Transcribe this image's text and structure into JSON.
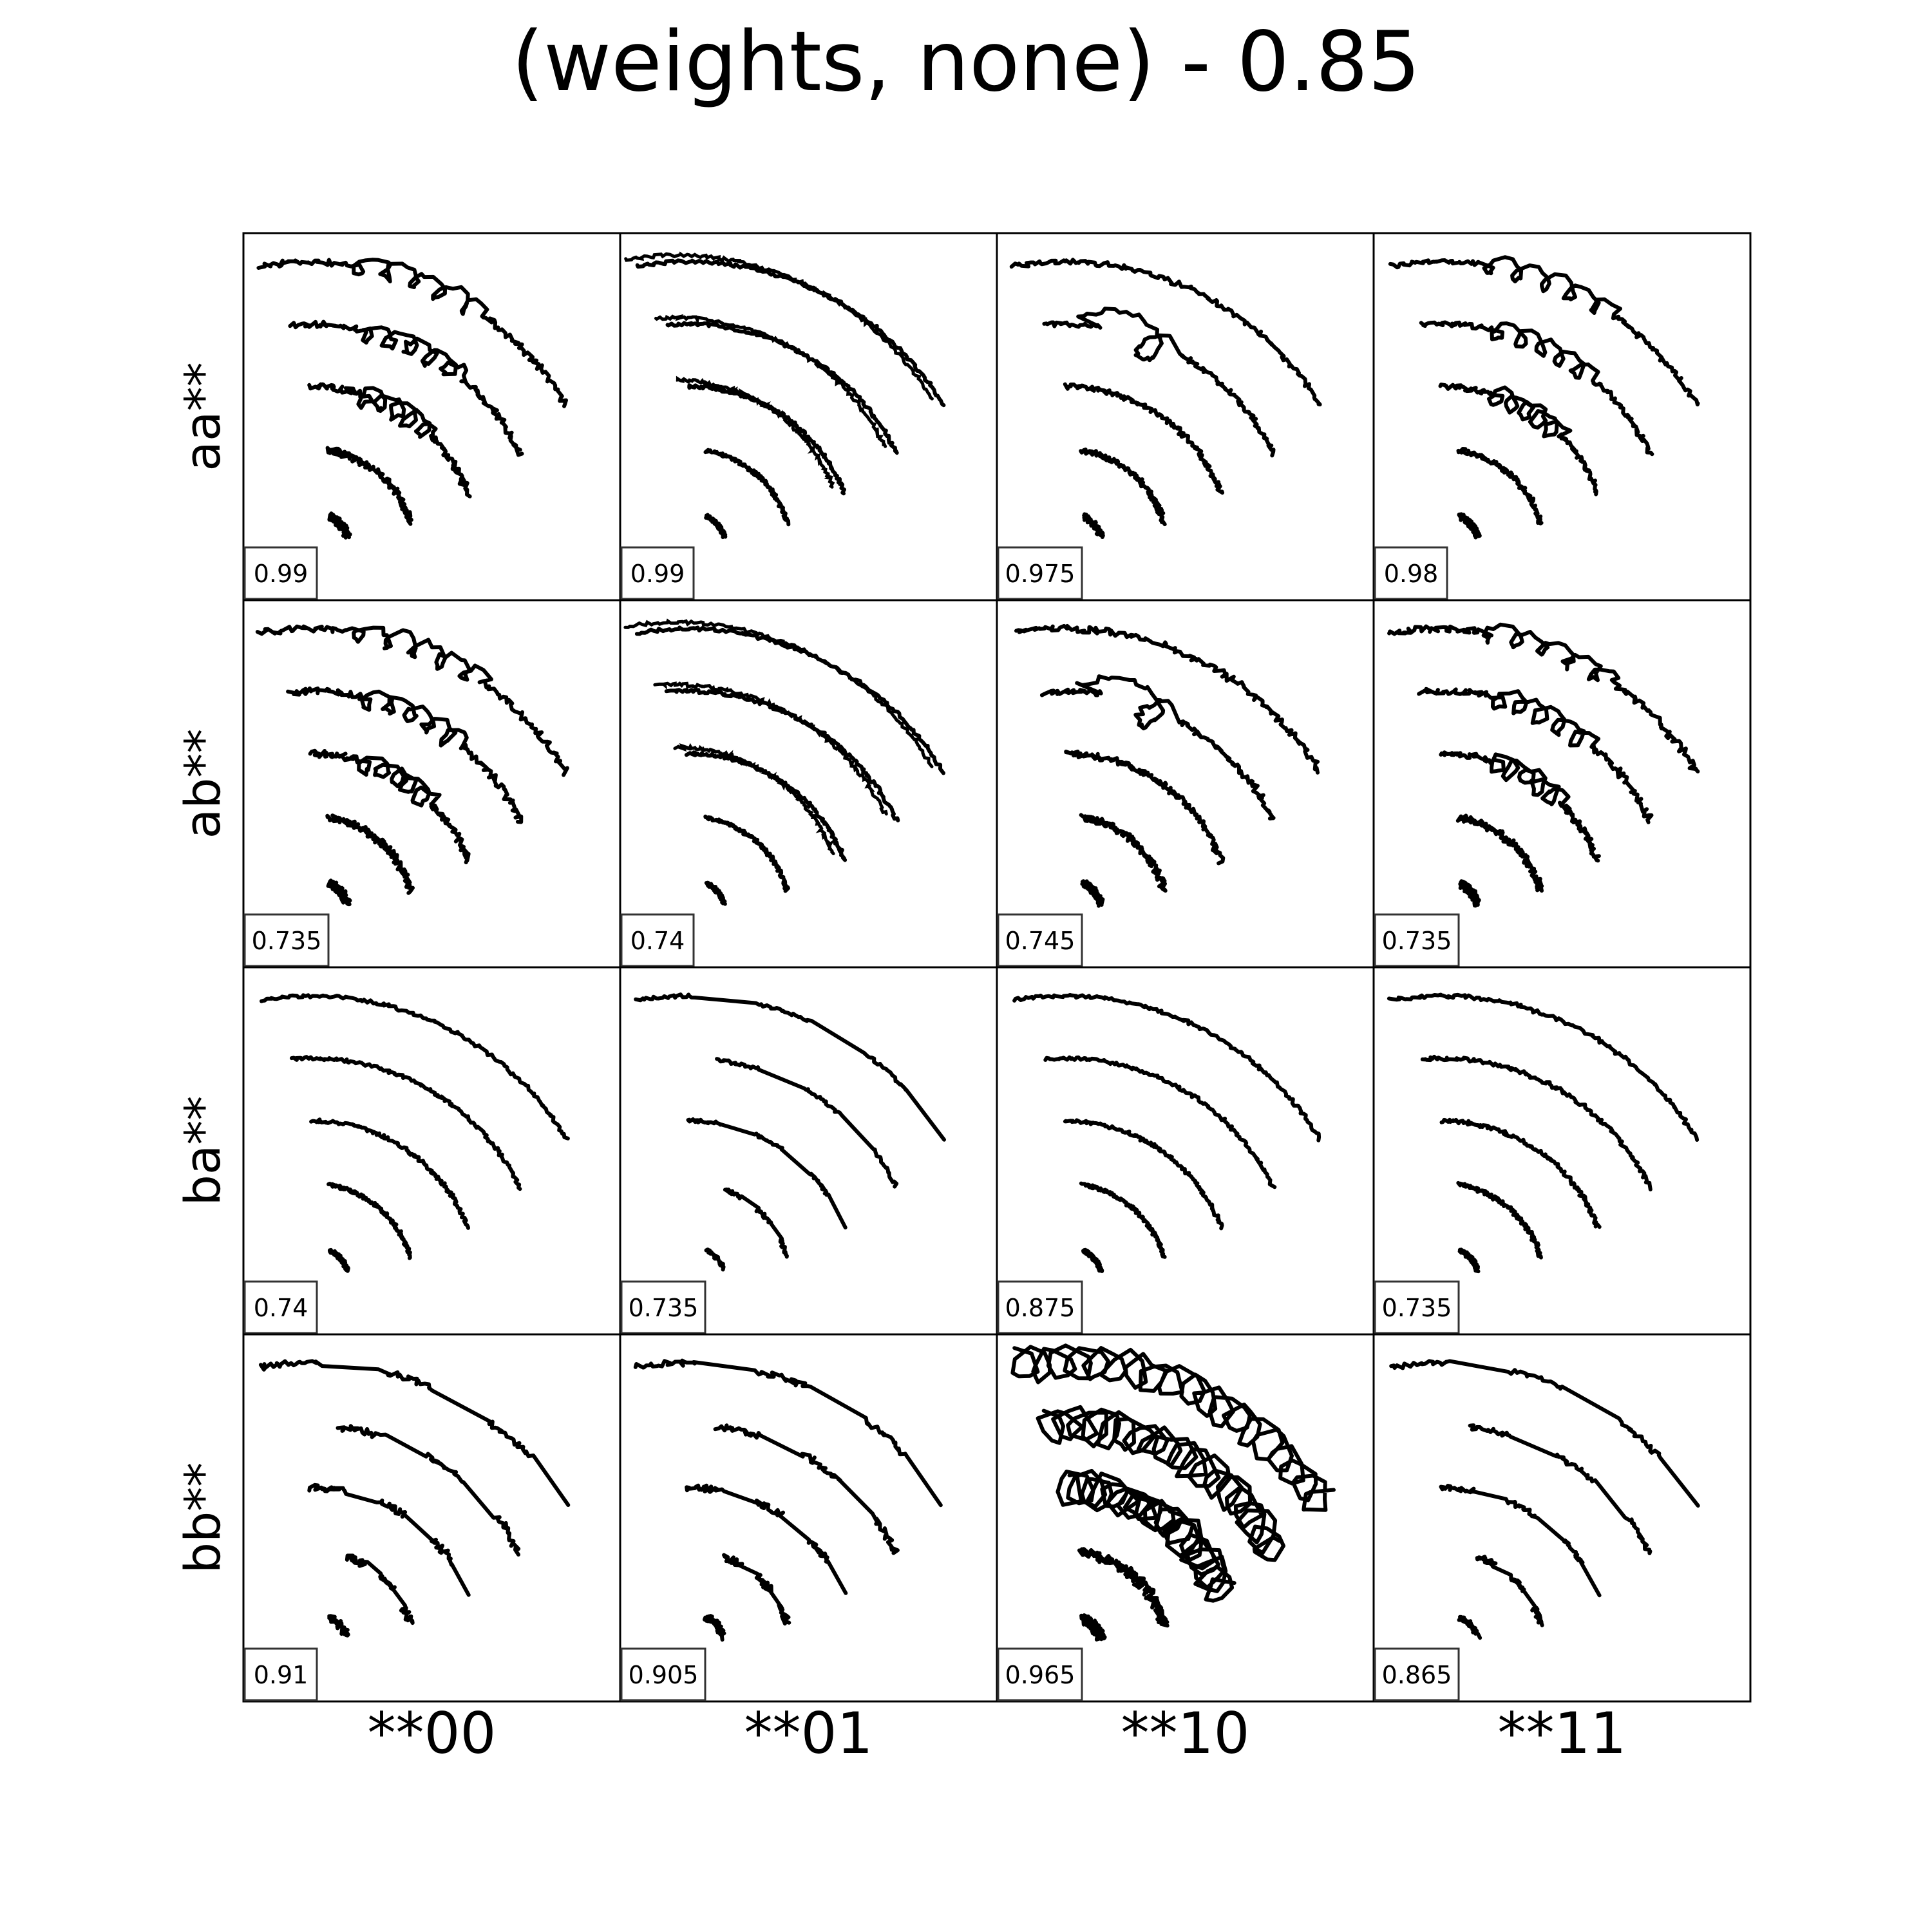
{
  "chart_data": {
    "type": "scatter",
    "title": "(weights, none) - 0.85",
    "grid": false,
    "legend": "none",
    "row_labels": [
      "aa**",
      "ab**",
      "ba**",
      "bb**"
    ],
    "col_labels": [
      "**00",
      "**01",
      "**10",
      "**11"
    ],
    "scores": [
      [
        "0.99",
        "0.99",
        "0.975",
        "0.98"
      ],
      [
        "0.735",
        "0.74",
        "0.745",
        "0.735"
      ],
      [
        "0.74",
        "0.735",
        "0.875",
        "0.735"
      ],
      [
        "0.91",
        "0.905",
        "0.965",
        "0.865"
      ]
    ],
    "pattern": {
      "description": "five concentric arcs per panel; each arc given by center angle range and radius in data units",
      "arcs": [
        {
          "r": 0.12,
          "start": 60,
          "end": 20
        },
        {
          "r": 0.32,
          "start": 80,
          "end": 15
        },
        {
          "r": 0.52,
          "start": 90,
          "end": 20
        },
        {
          "r": 0.72,
          "start": 95,
          "end": 25
        },
        {
          "r": 0.92,
          "start": 100,
          "end": 30
        }
      ]
    },
    "panels": [
      [
        {
          "style": "jagged",
          "noise": 0.02
        },
        {
          "style": "bands",
          "noise": 0.01
        },
        {
          "style": "loops",
          "noise": 0.015
        },
        {
          "style": "jagged",
          "noise": 0.015
        }
      ],
      [
        {
          "style": "jagged",
          "noise": 0.02
        },
        {
          "style": "bands",
          "noise": 0.01
        },
        {
          "style": "loops",
          "noise": 0.02
        },
        {
          "style": "jagged",
          "noise": 0.02
        }
      ],
      [
        {
          "style": "smooth",
          "noise": 0.01
        },
        {
          "style": "fragments",
          "noise": 0.01
        },
        {
          "style": "smooth",
          "noise": 0.01
        },
        {
          "style": "smooth",
          "noise": 0.012
        }
      ],
      [
        {
          "style": "fragments",
          "noise": 0.02
        },
        {
          "style": "fragments",
          "noise": 0.02
        },
        {
          "style": "zigzag",
          "noise": 0.03
        },
        {
          "style": "fragments",
          "noise": 0.015
        }
      ]
    ]
  }
}
